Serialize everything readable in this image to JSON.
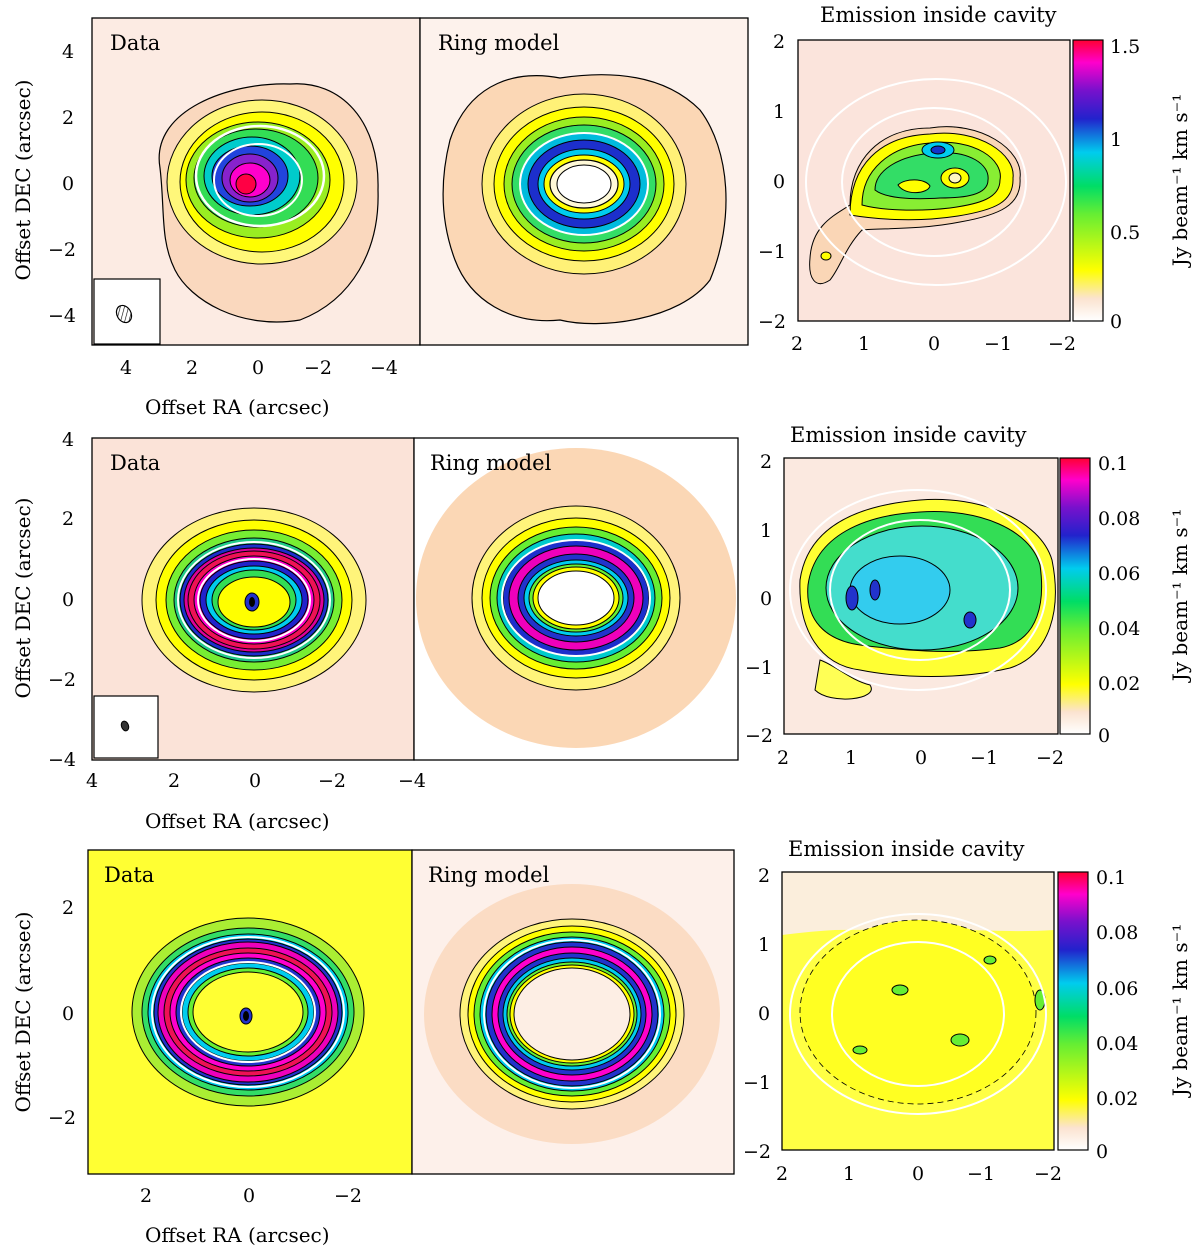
{
  "figure": {
    "rows": [
      {
        "id": "row1",
        "panels": {
          "data_label": "Data",
          "model_label": "Ring model",
          "cavity_title": "Emission inside cavity"
        },
        "xlabel": "Offset RA (arcsec)",
        "ylabel": "Offset DEC (arcsec)",
        "y_ticks": [
          "4",
          "2",
          "0",
          "−2",
          "−4"
        ],
        "x_ticks": [
          "4",
          "2",
          "0",
          "−2",
          "−4"
        ],
        "cav_x_ticks": [
          "2",
          "1",
          "0",
          "−1",
          "−2"
        ],
        "cav_y_ticks": [
          "2",
          "1",
          "0",
          "−1",
          "−2"
        ],
        "colorbar": {
          "ticks": [
            "1.5",
            "1",
            "0.5",
            "0"
          ],
          "label": "Jy beam⁻¹ km s⁻¹",
          "range": [
            0,
            1.5
          ]
        },
        "has_beam": true
      },
      {
        "id": "row2",
        "panels": {
          "data_label": "Data",
          "model_label": "Ring model",
          "cavity_title": "Emission inside cavity"
        },
        "xlabel": "Offset RA (arcsec)",
        "ylabel": "Offset DEC (arcsec)",
        "y_ticks": [
          "4",
          "2",
          "0",
          "−2",
          "−4"
        ],
        "x_ticks": [
          "4",
          "2",
          "0",
          "−2",
          "−4"
        ],
        "cav_x_ticks": [
          "2",
          "1",
          "0",
          "−1",
          "−2"
        ],
        "cav_y_ticks": [
          "2",
          "1",
          "0",
          "−1",
          "−2"
        ],
        "colorbar": {
          "ticks": [
            "0.1",
            "0.08",
            "0.06",
            "0.04",
            "0.02",
            "0"
          ],
          "label": "Jy beam⁻¹ km s⁻¹",
          "range": [
            0,
            0.1
          ]
        },
        "has_beam": true
      },
      {
        "id": "row3",
        "panels": {
          "data_label": "Data",
          "model_label": "Ring model",
          "cavity_title": "Emission inside cavity"
        },
        "xlabel": "Offset RA (arcsec)",
        "ylabel": "Offset DEC (arcsec)",
        "y_ticks": [
          "2",
          "0",
          "−2"
        ],
        "x_ticks": [
          "2",
          "0",
          "−2"
        ],
        "cav_x_ticks": [
          "2",
          "1",
          "0",
          "−1",
          "−2"
        ],
        "cav_y_ticks": [
          "2",
          "1",
          "0",
          "−1",
          "−2"
        ],
        "colorbar": {
          "ticks": [
            "0.1",
            "0.08",
            "0.06",
            "0.04",
            "0.02",
            "0"
          ],
          "label": "Jy beam⁻¹ km s⁻¹",
          "range": [
            0,
            0.1
          ]
        },
        "has_beam": false
      }
    ],
    "colors": {
      "background_low": "#fbe7df",
      "yellow": "#ffff00",
      "green": "#33dd33",
      "cyan": "#00ccee",
      "blue": "#2222cc",
      "magenta": "#ff00cc",
      "red": "#ff0033",
      "white_ellipse": "#ffffff",
      "contour": "#000000"
    }
  }
}
